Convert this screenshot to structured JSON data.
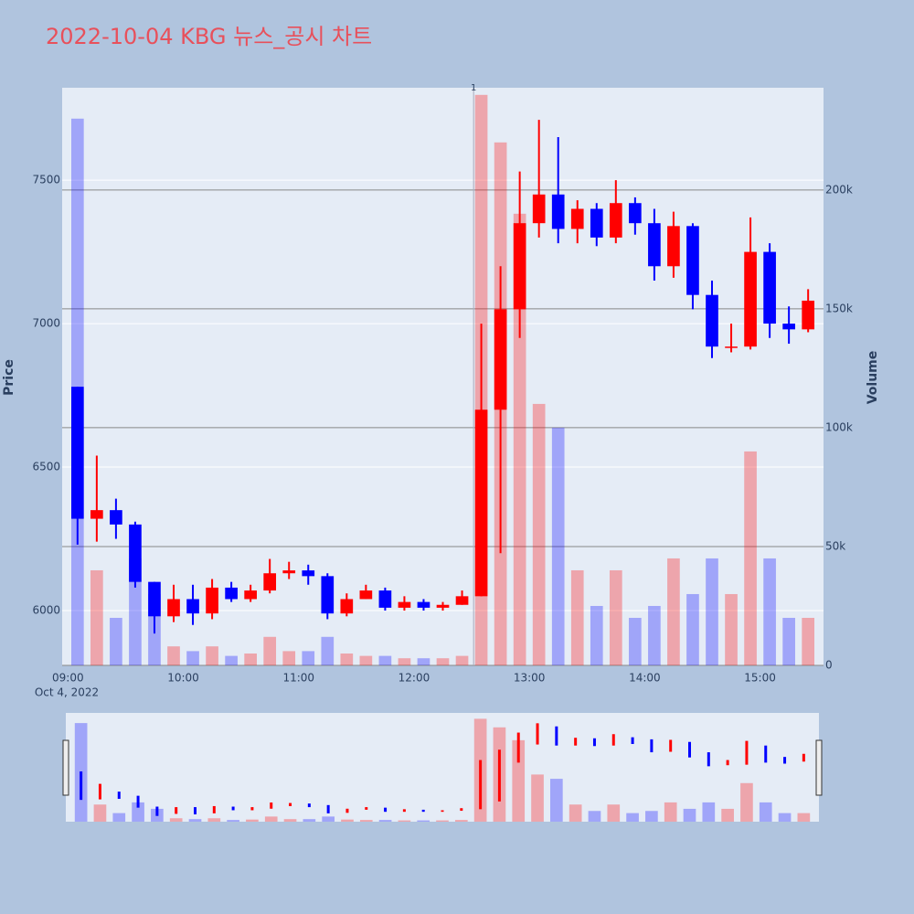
{
  "chart_data": {
    "type": "candlestick",
    "title": "2022-10-04 KBG 뉴스_공시 차트",
    "y_label": "Price",
    "y2_label": "Volume",
    "x_sublabel": "Oct 4, 2022",
    "up_color": "#ff0000",
    "down_color": "#0000ff",
    "x": [
      "09:00",
      "09:10",
      "09:20",
      "09:30",
      "09:40",
      "09:50",
      "10:00",
      "10:10",
      "10:20",
      "10:30",
      "10:40",
      "10:50",
      "11:00",
      "11:10",
      "11:20",
      "11:30",
      "11:40",
      "11:50",
      "12:00",
      "12:10",
      "12:20",
      "12:30",
      "12:40",
      "12:50",
      "13:00",
      "13:10",
      "13:20",
      "13:30",
      "13:40",
      "13:50",
      "14:00",
      "14:10",
      "14:20",
      "14:30",
      "14:40",
      "14:50",
      "15:00",
      "15:10",
      "15:20"
    ],
    "open": [
      6780,
      6320,
      6350,
      6300,
      6100,
      5980,
      6040,
      5990,
      6080,
      6040,
      6070,
      6130,
      6140,
      6120,
      5990,
      6040,
      6070,
      6010,
      6030,
      6010,
      6020,
      6050,
      6700,
      7050,
      7350,
      7450,
      7330,
      7400,
      7300,
      7420,
      7350,
      7200,
      7340,
      7100,
      6920,
      6920,
      7250,
      7000,
      6980
    ],
    "high": [
      6780,
      6540,
      6390,
      6310,
      6100,
      6090,
      6090,
      6110,
      6100,
      6090,
      6180,
      6170,
      6160,
      6130,
      6060,
      6090,
      6080,
      6050,
      6040,
      6030,
      6070,
      7000,
      7200,
      7530,
      7710,
      7650,
      7430,
      7420,
      7500,
      7440,
      7400,
      7390,
      7350,
      7150,
      7000,
      7370,
      7280,
      7060,
      7120
    ],
    "low": [
      6230,
      6240,
      6250,
      6080,
      5920,
      5960,
      5950,
      5970,
      6030,
      6030,
      6060,
      6110,
      6090,
      5970,
      5980,
      6040,
      6000,
      6000,
      6000,
      6000,
      6020,
      6050,
      6200,
      6950,
      7300,
      7280,
      7280,
      7270,
      7280,
      7310,
      7150,
      7160,
      7050,
      6880,
      6900,
      6910,
      6950,
      6930,
      6970
    ],
    "close": [
      6320,
      6350,
      6300,
      6100,
      5980,
      6040,
      5990,
      6080,
      6040,
      6070,
      6130,
      6140,
      6120,
      5990,
      6040,
      6070,
      6010,
      6030,
      6010,
      6020,
      6050,
      6700,
      7050,
      7350,
      7450,
      7330,
      7400,
      7300,
      7420,
      7350,
      7200,
      7340,
      7100,
      6920,
      6920,
      7250,
      7000,
      6980,
      7080
    ],
    "volume": [
      230000,
      40000,
      20000,
      45000,
      30000,
      8000,
      6000,
      8000,
      4000,
      5000,
      12000,
      6000,
      6000,
      12000,
      5000,
      4000,
      4000,
      3000,
      3000,
      3000,
      4000,
      240000,
      220000,
      190000,
      110000,
      100000,
      40000,
      25000,
      40000,
      20000,
      25000,
      45000,
      30000,
      45000,
      30000,
      90000,
      45000,
      20000,
      20000
    ],
    "xlim": [
      "08:57",
      "15:33"
    ],
    "xticks": [
      "09:00",
      "10:00",
      "11:00",
      "12:00",
      "13:00",
      "14:00",
      "15:00"
    ],
    "ylim": [
      5809,
      7822
    ],
    "yticks": [
      6000,
      6500,
      7000,
      7500
    ],
    "y2lim": [
      0,
      243000
    ],
    "y2ticks": [
      0,
      {
        "value": 50000,
        "label": "50k"
      },
      {
        "value": 100000,
        "label": "100k"
      },
      {
        "value": 150000,
        "label": "150k"
      },
      {
        "value": 200000,
        "label": "200k"
      }
    ],
    "annotations": [
      {
        "x": "12:31",
        "text": "1"
      }
    ]
  }
}
